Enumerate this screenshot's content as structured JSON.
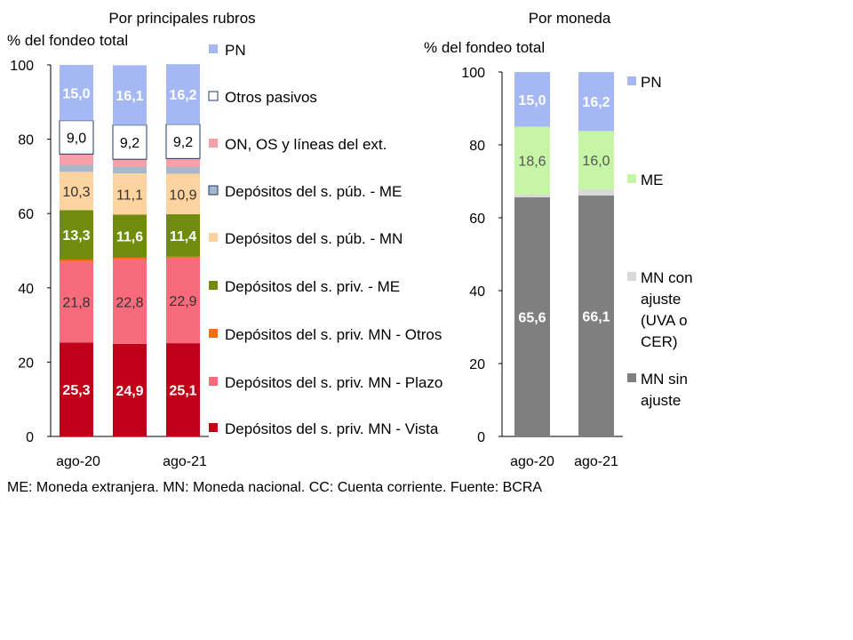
{
  "footnote": "ME: Moneda extranjera. MN: Moneda nacional. CC: Cuenta corriente. Fuente: BCRA",
  "chart_data": [
    {
      "type": "bar",
      "stacked": true,
      "title": "Por principales rubros",
      "ylabel": "% del fondeo total",
      "ylim": [
        0,
        100
      ],
      "yticks": [
        0,
        20,
        40,
        60,
        80,
        100
      ],
      "categories": [
        "ago-20",
        "",
        "ago-21"
      ],
      "x_tick_labels": [
        "ago-20",
        "ago-21"
      ],
      "legend_position": "right",
      "series": [
        {
          "name": "Depósitos del s. priv. MN - Vista",
          "color": "#c00018",
          "values": [
            25.3,
            24.9,
            25.1
          ],
          "labels": [
            "25,3",
            "24,9",
            "25,1"
          ],
          "label_color": "#ffffff"
        },
        {
          "name": "Depósitos del s. priv. MN - Plazo",
          "color": "#f76b7c",
          "values": [
            21.8,
            22.8,
            22.9
          ],
          "labels": [
            "21,8",
            "22,8",
            "22,9"
          ],
          "label_color": "#333333"
        },
        {
          "name": "Depósitos del s. priv. MN - Otros",
          "color": "#ff6a10",
          "values": [
            0.5,
            0.4,
            0.4
          ],
          "labels": [
            "",
            "",
            ""
          ],
          "label_color": "#333333"
        },
        {
          "name": "Depósitos del s. priv. - ME",
          "color": "#6f8c0c",
          "values": [
            13.3,
            11.6,
            11.4
          ],
          "labels": [
            "13,3",
            "11,6",
            "11,4"
          ],
          "label_color": "#ffffff"
        },
        {
          "name": "Depósitos del s. púb. - MN",
          "color": "#fdd3a0",
          "values": [
            10.3,
            11.1,
            10.9
          ],
          "labels": [
            "10,3",
            "11,1",
            "10,9"
          ],
          "label_color": "#333333"
        },
        {
          "name": "Depósitos del s. púb. - ME",
          "color": "#a8b8cc",
          "values": [
            1.9,
            1.8,
            1.8
          ],
          "labels": [
            "",
            "",
            ""
          ],
          "label_color": "#333333"
        },
        {
          "name": "ON, OS y líneas del ext.",
          "color": "#f7a0a8",
          "values": [
            2.9,
            2.0,
            2.3
          ],
          "labels": [
            "",
            "",
            ""
          ],
          "label_color": "#333333"
        },
        {
          "name": "Otros pasivos",
          "color": "#ffffff",
          "values": [
            9.0,
            9.2,
            9.2
          ],
          "labels": [
            "9,0",
            "9,2",
            "9,2"
          ],
          "label_color": "#000000"
        },
        {
          "name": "PN",
          "color": "#a6b8f4",
          "values": [
            15.0,
            16.1,
            16.2
          ],
          "labels": [
            "15,0",
            "16,1",
            "16,2"
          ],
          "label_color": "#ffffff"
        }
      ]
    },
    {
      "type": "bar",
      "stacked": true,
      "title": "Por moneda",
      "ylabel": "% del fondeo total",
      "ylim": [
        0,
        100
      ],
      "yticks": [
        0,
        20,
        40,
        60,
        80,
        100
      ],
      "categories": [
        "ago-20",
        "ago-21"
      ],
      "x_tick_labels": [
        "ago-20",
        "ago-21"
      ],
      "legend_position": "right",
      "series": [
        {
          "name": "MN sin ajuste",
          "color": "#7f7f7f",
          "values": [
            65.6,
            66.1
          ],
          "labels": [
            "65,6",
            "66,1"
          ],
          "label_color": "#ffffff"
        },
        {
          "name": "MN con ajuste (UVA o CER)",
          "color": "#d9d9d9",
          "values": [
            0.8,
            1.7
          ],
          "labels": [
            "0,8",
            "1,7"
          ],
          "label_color": "#333333"
        },
        {
          "name": "ME",
          "color": "#c6f5a6",
          "values": [
            18.6,
            16.0
          ],
          "labels": [
            "18,6",
            "16,0"
          ],
          "label_color": "#555555"
        },
        {
          "name": "PN",
          "color": "#a6b8f4",
          "values": [
            15.0,
            16.2
          ],
          "labels": [
            "15,0",
            "16,2"
          ],
          "label_color": "#ffffff"
        }
      ]
    }
  ]
}
